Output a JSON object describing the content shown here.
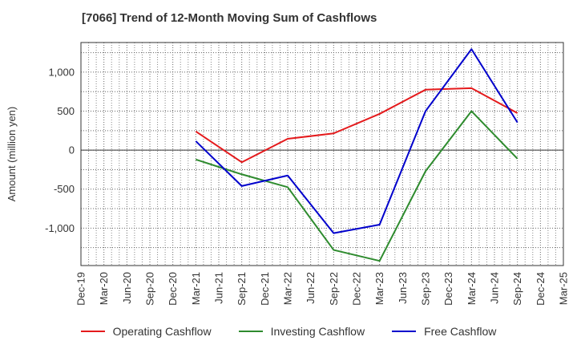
{
  "chart_data": {
    "type": "line",
    "title": "[7066]  Trend of 12-Month Moving Sum of Cashflows",
    "ylabel": "Amount (million yen)",
    "xlabel": "",
    "categories": [
      "Dec-19",
      "Mar-20",
      "Jun-20",
      "Sep-20",
      "Dec-20",
      "Mar-21",
      "Jun-21",
      "Sep-21",
      "Dec-21",
      "Mar-22",
      "Jun-22",
      "Sep-22",
      "Dec-22",
      "Mar-23",
      "Jun-23",
      "Sep-23",
      "Dec-23",
      "Mar-24",
      "Jun-24",
      "Sep-24",
      "Dec-24",
      "Mar-25"
    ],
    "ylim": [
      -1480,
      1380
    ],
    "yticks": [
      1000,
      500,
      0,
      -500,
      -1000
    ],
    "ytick_labels": [
      "1,000",
      "500",
      "0",
      "-500",
      "-1,000"
    ],
    "grid": true,
    "legend_position": "bottom",
    "series": [
      {
        "name": "Operating Cashflow",
        "color": "#e41a1c",
        "points": [
          [
            "Mar-21",
            240
          ],
          [
            "Sep-21",
            -155
          ],
          [
            "Mar-22",
            145
          ],
          [
            "Sep-22",
            215
          ],
          [
            "Mar-23",
            465
          ],
          [
            "Sep-23",
            775
          ],
          [
            "Mar-24",
            795
          ],
          [
            "Sep-24",
            475
          ]
        ]
      },
      {
        "name": "Investing Cashflow",
        "color": "#2e8b2e",
        "points": [
          [
            "Mar-21",
            -120
          ],
          [
            "Sep-21",
            -310
          ],
          [
            "Mar-22",
            -475
          ],
          [
            "Sep-22",
            -1280
          ],
          [
            "Mar-23",
            -1420
          ],
          [
            "Sep-23",
            -270
          ],
          [
            "Mar-24",
            500
          ],
          [
            "Sep-24",
            -110
          ]
        ]
      },
      {
        "name": "Free Cashflow",
        "color": "#0000cc",
        "points": [
          [
            "Mar-21",
            115
          ],
          [
            "Sep-21",
            -460
          ],
          [
            "Mar-22",
            -325
          ],
          [
            "Sep-22",
            -1065
          ],
          [
            "Mar-23",
            -955
          ],
          [
            "Sep-23",
            500
          ],
          [
            "Mar-24",
            1295
          ],
          [
            "Sep-24",
            355
          ]
        ]
      }
    ]
  }
}
